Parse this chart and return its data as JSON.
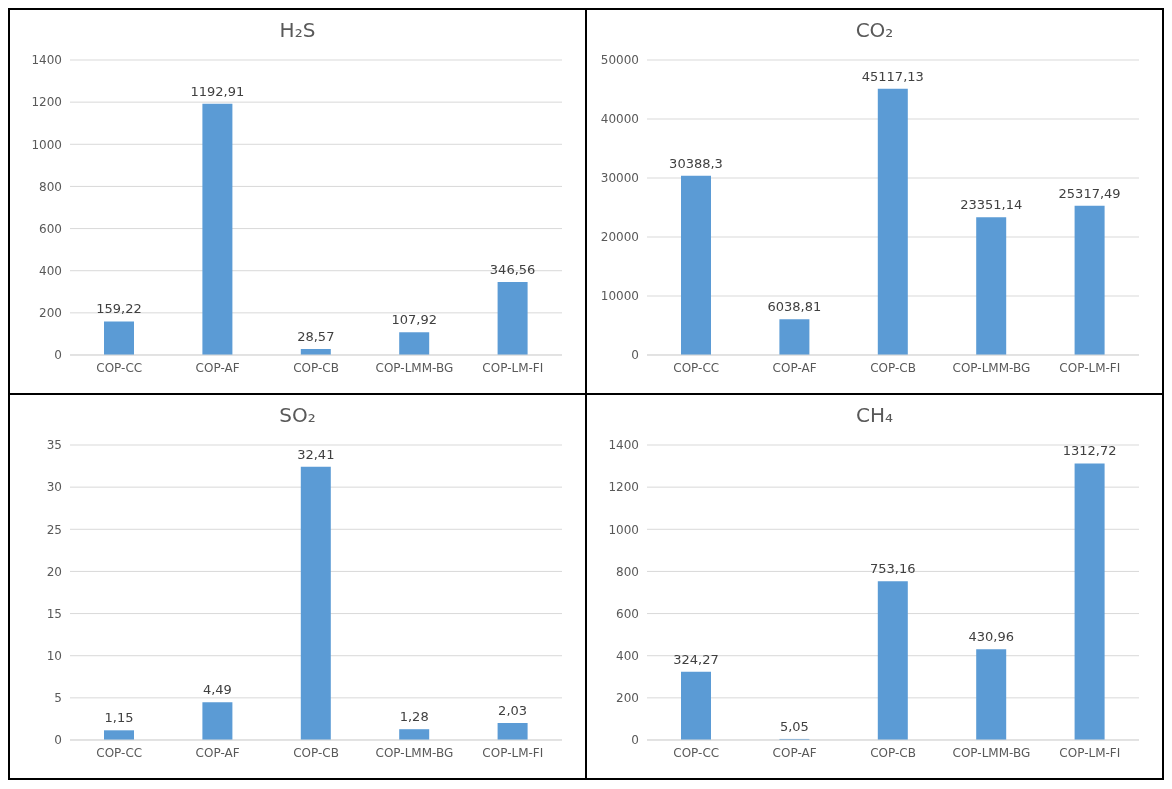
{
  "chart_data": [
    {
      "type": "bar",
      "title": "H₂S",
      "categories": [
        "COP-CC",
        "COP-AF",
        "COP-CB",
        "COP-LMM-BG",
        "COP-LM-FI"
      ],
      "values": [
        159.22,
        1192.91,
        28.57,
        107.92,
        346.56
      ],
      "value_labels": [
        "159,22",
        "1192,91",
        "28,57",
        "107,92",
        "346,56"
      ],
      "color": "#5b9bd5",
      "ylim": [
        0,
        1400
      ],
      "yticks": [
        0,
        200,
        400,
        600,
        800,
        1000,
        1200,
        1400
      ],
      "grid": "y"
    },
    {
      "type": "bar",
      "title": "CO₂",
      "categories": [
        "COP-CC",
        "COP-AF",
        "COP-CB",
        "COP-LMM-BG",
        "COP-LM-FI"
      ],
      "values": [
        30388.3,
        6038.81,
        45117.13,
        23351.14,
        25317.49
      ],
      "value_labels": [
        "30388,3",
        "6038,81",
        "45117,13",
        "23351,14",
        "25317,49"
      ],
      "color": "#5b9bd5",
      "ylim": [
        0,
        50000
      ],
      "yticks": [
        0,
        10000,
        20000,
        30000,
        40000,
        50000
      ],
      "grid": "y"
    },
    {
      "type": "bar",
      "title": "SO₂",
      "categories": [
        "COP-CC",
        "COP-AF",
        "COP-CB",
        "COP-LMM-BG",
        "COP-LM-FI"
      ],
      "values": [
        1.15,
        4.49,
        32.41,
        1.28,
        2.03
      ],
      "value_labels": [
        "1,15",
        "4,49",
        "32,41",
        "1,28",
        "2,03"
      ],
      "color": "#5b9bd5",
      "ylim": [
        0,
        35
      ],
      "yticks": [
        0,
        5,
        10,
        15,
        20,
        25,
        30,
        35
      ],
      "grid": "y"
    },
    {
      "type": "bar",
      "title": "CH₄",
      "categories": [
        "COP-CC",
        "COP-AF",
        "COP-CB",
        "COP-LMM-BG",
        "COP-LM-FI"
      ],
      "values": [
        324.27,
        5.05,
        753.16,
        430.96,
        1312.72
      ],
      "value_labels": [
        "324,27",
        "5,05",
        "753,16",
        "430,96",
        "1312,72"
      ],
      "color": "#5b9bd5",
      "ylim": [
        0,
        1400
      ],
      "yticks": [
        0,
        200,
        400,
        600,
        800,
        1000,
        1200,
        1400
      ],
      "grid": "y"
    }
  ]
}
